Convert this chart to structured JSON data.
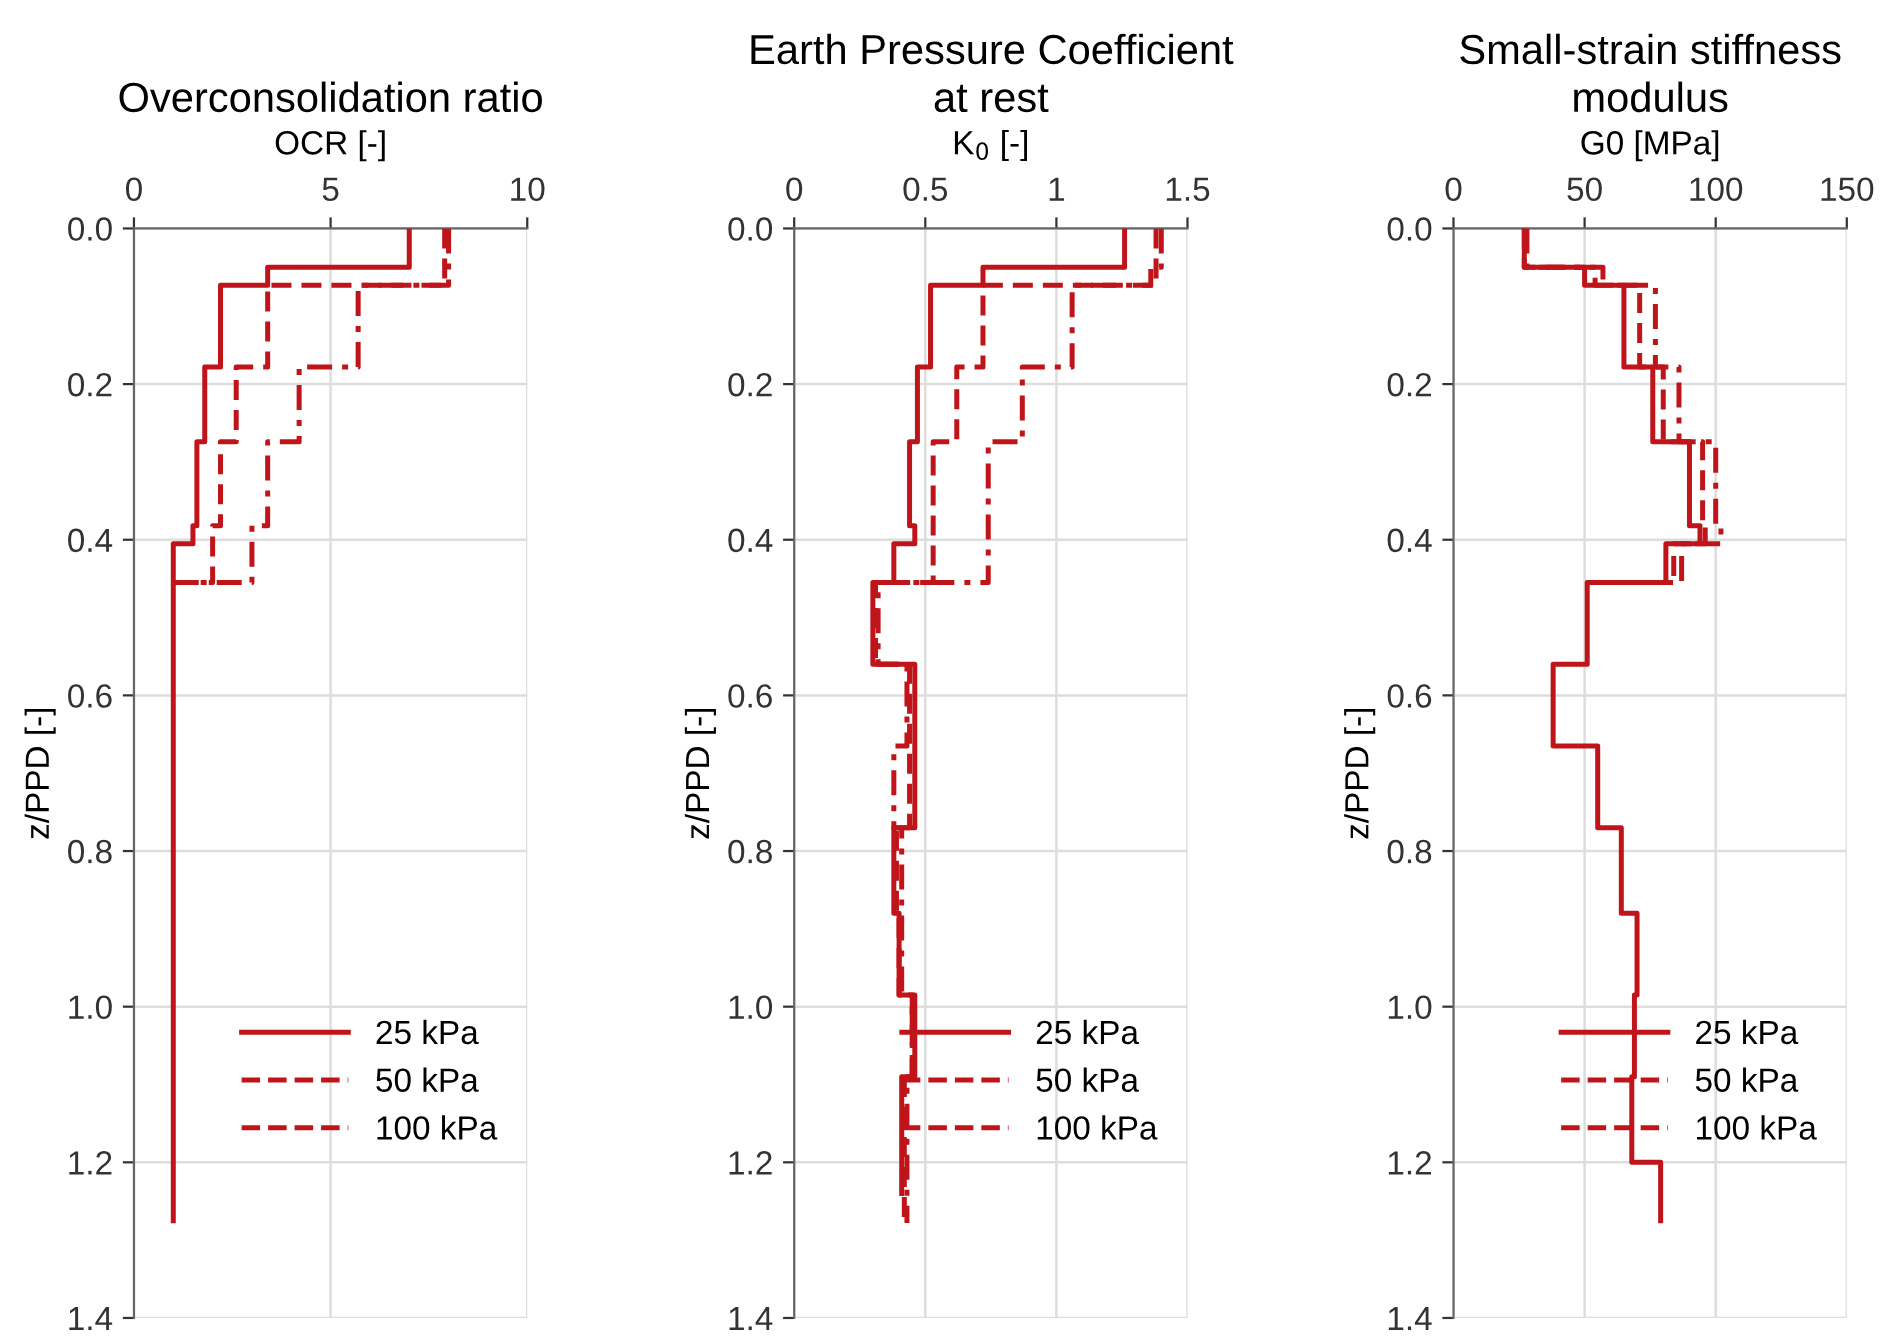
{
  "chart_data": [
    {
      "type": "line",
      "title": "Overconsolidation ratio",
      "xlabel": "OCR [-]",
      "ylabel": "z/PPD [-]",
      "xlim": [
        0,
        10
      ],
      "xticks": [
        0,
        5,
        10
      ],
      "ylim": [
        1.4,
        0
      ],
      "yticks": [
        {
          "value": 0,
          "label": "0.0"
        },
        {
          "value": 0.2,
          "label": "0.2"
        },
        {
          "value": 0.4,
          "label": "0.4"
        },
        {
          "value": 0.6,
          "label": "0.6"
        },
        {
          "value": 0.8,
          "label": "0.8"
        },
        {
          "value": 1,
          "label": "1.0"
        },
        {
          "value": 1.2,
          "label": "1.2"
        },
        {
          "value": 1.4,
          "label": "1.4"
        }
      ],
      "grid": true,
      "legend": "bottom right",
      "marker": "none",
      "series": [
        {
          "name": "25 kPa",
          "color": "#c0141b",
          "line_style": "solid",
          "x": [
            7.0,
            7.0,
            3.4,
            3.4,
            2.2,
            2.2,
            1.8,
            1.8,
            1.6,
            1.6,
            1.5,
            1.5,
            1.0,
            1.0
          ],
          "values": [
            0,
            0.05,
            0.05,
            0.073,
            0.073,
            0.178,
            0.178,
            0.274,
            0.274,
            0.382,
            0.382,
            0.405,
            0.405,
            1.275
          ]
        },
        {
          "name": "50 kPa",
          "color": "#c0141b",
          "line_style": "dashed",
          "x": [
            7.9,
            7.9,
            3.4,
            3.4,
            2.6,
            2.6,
            2.2,
            2.2,
            2.0,
            2.0,
            1.0
          ],
          "values": [
            0,
            0.073,
            0.073,
            0.178,
            0.178,
            0.274,
            0.274,
            0.382,
            0.382,
            0.455,
            0.455
          ]
        },
        {
          "name": "100 kPa",
          "color": "#c0141b",
          "line_style": "dashdot",
          "x": [
            8.0,
            8.0,
            5.7,
            5.7,
            4.2,
            4.2,
            3.4,
            3.4,
            3.0,
            3.0,
            1.0
          ],
          "values": [
            0,
            0.073,
            0.073,
            0.178,
            0.178,
            0.274,
            0.274,
            0.382,
            0.382,
            0.455,
            0.455
          ]
        }
      ]
    },
    {
      "type": "line",
      "title": "Earth Pressure Coefficient\nat rest",
      "xlabel": "K$_{0}$ [-]",
      "ylabel": "z/PPD [-]",
      "xlim": [
        0,
        1.5
      ],
      "xticks": [
        0,
        0.5,
        1,
        1.5
      ],
      "ylim": [
        1.4,
        0
      ],
      "yticks": [
        {
          "value": 0,
          "label": "0.0"
        },
        {
          "value": 0.2,
          "label": "0.2"
        },
        {
          "value": 0.4,
          "label": "0.4"
        },
        {
          "value": 0.6,
          "label": "0.6"
        },
        {
          "value": 0.8,
          "label": "0.8"
        },
        {
          "value": 1,
          "label": "1.0"
        },
        {
          "value": 1.2,
          "label": "1.2"
        },
        {
          "value": 1.4,
          "label": "1.4"
        }
      ],
      "grid": true,
      "legend": "bottom right",
      "marker": "none",
      "series": [
        {
          "name": "25 kPa",
          "color": "#c0141b",
          "line_style": "solid",
          "x": [
            1.26,
            1.26,
            0.72,
            0.72,
            0.52,
            0.52,
            0.47,
            0.47,
            0.44,
            0.44,
            0.46,
            0.46,
            0.38,
            0.38,
            0.3,
            0.3,
            0.46,
            0.46,
            0.38,
            0.38,
            0.4,
            0.4,
            0.46,
            0.46,
            0.41,
            0.41
          ],
          "values": [
            0,
            0.05,
            0.05,
            0.073,
            0.073,
            0.178,
            0.178,
            0.274,
            0.274,
            0.382,
            0.382,
            0.405,
            0.405,
            0.455,
            0.455,
            0.56,
            0.56,
            0.77,
            0.77,
            0.88,
            0.88,
            0.985,
            0.985,
            1.09,
            1.09,
            1.24
          ]
        },
        {
          "name": "50 kPa",
          "color": "#c0141b",
          "line_style": "dashed",
          "x": [
            1.38,
            1.38,
            0.72,
            0.72,
            0.62,
            0.62,
            0.53,
            0.53,
            0.31,
            0.31,
            0.44,
            0.44,
            0.39,
            0.39,
            0.4,
            0.4,
            0.45,
            0.45,
            0.42,
            0.42
          ],
          "values": [
            0,
            0.073,
            0.073,
            0.178,
            0.178,
            0.274,
            0.274,
            0.455,
            0.455,
            0.56,
            0.56,
            0.77,
            0.77,
            0.88,
            0.88,
            0.985,
            0.985,
            1.09,
            1.09,
            1.275
          ]
        },
        {
          "name": "100 kPa",
          "color": "#c0141b",
          "line_style": "dashdot",
          "x": [
            1.4,
            1.4,
            1.36,
            1.36,
            1.06,
            1.06,
            0.87,
            0.87,
            0.74,
            0.74,
            0.32,
            0.32,
            0.43,
            0.43,
            0.38,
            0.38,
            0.41,
            0.41,
            0.45,
            0.45,
            0.43,
            0.43
          ],
          "values": [
            0,
            0.05,
            0.05,
            0.073,
            0.073,
            0.178,
            0.178,
            0.274,
            0.274,
            0.455,
            0.455,
            0.56,
            0.56,
            0.665,
            0.665,
            0.77,
            0.77,
            0.985,
            0.985,
            1.09,
            1.09,
            1.278
          ]
        }
      ]
    },
    {
      "type": "line",
      "title": "Small-strain stiffness\nmodulus",
      "xlabel": "G0 [MPa]",
      "ylabel": "z/PPD [-]",
      "xlim": [
        0,
        150
      ],
      "xticks": [
        0,
        50,
        100,
        150
      ],
      "ylim": [
        1.4,
        0
      ],
      "yticks": [
        {
          "value": 0,
          "label": "0.0"
        },
        {
          "value": 0.2,
          "label": "0.2"
        },
        {
          "value": 0.4,
          "label": "0.4"
        },
        {
          "value": 0.6,
          "label": "0.6"
        },
        {
          "value": 0.8,
          "label": "0.8"
        },
        {
          "value": 1,
          "label": "1.0"
        },
        {
          "value": 1.2,
          "label": "1.2"
        },
        {
          "value": 1.4,
          "label": "1.4"
        }
      ],
      "grid": true,
      "legend": "bottom right",
      "marker": "none",
      "series": [
        {
          "name": "25 kPa",
          "color": "#c0141b",
          "line_style": "solid",
          "x": [
            27,
            27,
            50,
            50,
            65,
            65,
            76,
            76,
            90,
            90,
            94,
            94,
            81,
            81,
            51,
            51,
            38,
            38,
            55,
            55,
            64,
            64,
            70,
            70,
            69,
            69,
            68,
            68,
            79,
            79
          ],
          "values": [
            0,
            0.05,
            0.05,
            0.073,
            0.073,
            0.178,
            0.178,
            0.274,
            0.274,
            0.382,
            0.382,
            0.405,
            0.405,
            0.455,
            0.455,
            0.56,
            0.56,
            0.665,
            0.665,
            0.77,
            0.77,
            0.88,
            0.88,
            0.985,
            0.985,
            1.09,
            1.09,
            1.2,
            1.2,
            1.275
          ]
        },
        {
          "name": "50 kPa",
          "color": "#c0141b",
          "line_style": "dashed",
          "x": [
            27,
            27,
            54,
            54,
            71,
            71,
            80,
            80,
            95,
            95,
            96,
            96,
            84,
            84,
            51
          ],
          "values": [
            0,
            0.05,
            0.05,
            0.073,
            0.073,
            0.178,
            0.178,
            0.274,
            0.274,
            0.382,
            0.382,
            0.405,
            0.405,
            0.455,
            0.455
          ]
        },
        {
          "name": "100 kPa",
          "color": "#c0141b",
          "line_style": "dashdot",
          "x": [
            28,
            28,
            57,
            57,
            77,
            77,
            86,
            86,
            100,
            100,
            102,
            102,
            87,
            87,
            51
          ],
          "values": [
            0,
            0.05,
            0.05,
            0.073,
            0.073,
            0.178,
            0.178,
            0.274,
            0.274,
            0.382,
            0.382,
            0.405,
            0.405,
            0.455,
            0.455
          ]
        }
      ]
    }
  ]
}
